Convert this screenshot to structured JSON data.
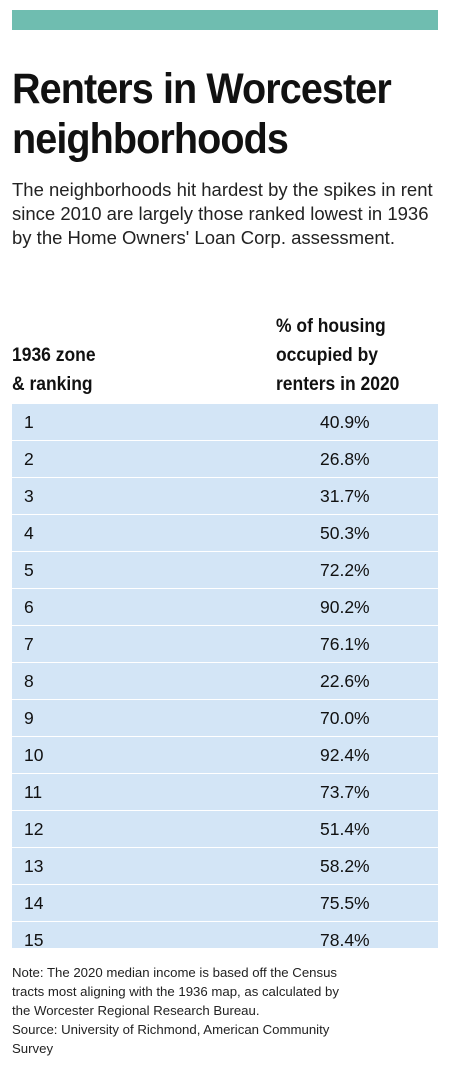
{
  "title_line1": "Renters in Worcester",
  "title_line2": "neighborhoods",
  "subtitle": "The neighborhoods hit hardest by the spikes in rent since 2010 are largely those ranked lowest in 1936 by the Home Owners' Loan Corp. assessment.",
  "colors": {
    "accent_bar": "#6fbdb0",
    "row_fill": "#d3e5f6"
  },
  "chart_data": {
    "type": "table",
    "columns": [
      "1936 zone & ranking",
      "% of housing occupied by renters in 2020"
    ],
    "column_header_lines": {
      "zone": [
        "1936 zone",
        "& ranking"
      ],
      "pct": [
        "% of housing",
        "occupied by",
        "renters in 2020"
      ]
    },
    "rows": [
      {
        "zone": "1",
        "pct": "40.9%"
      },
      {
        "zone": "2",
        "pct": "26.8%"
      },
      {
        "zone": "3",
        "pct": "31.7%"
      },
      {
        "zone": "4",
        "pct": "50.3%"
      },
      {
        "zone": "5",
        "pct": "72.2%"
      },
      {
        "zone": "6",
        "pct": "90.2%"
      },
      {
        "zone": "7",
        "pct": "76.1%"
      },
      {
        "zone": "8",
        "pct": "22.6%"
      },
      {
        "zone": "9",
        "pct": "70.0%"
      },
      {
        "zone": "10",
        "pct": "92.4%"
      },
      {
        "zone": "11",
        "pct": "73.7%"
      },
      {
        "zone": "12",
        "pct": "51.4%"
      },
      {
        "zone": "13",
        "pct": "58.2%"
      },
      {
        "zone": "14",
        "pct": "75.5%"
      },
      {
        "zone": "15",
        "pct": "78.4%"
      }
    ]
  },
  "notes": [
    "Note: The 2020 median income is based off the Census",
    "tracts most aligning with the 1936 map, as calculated by",
    "the Worcester Regional Research Bureau.",
    "Source: University of Richmond, American Community",
    "Survey"
  ]
}
